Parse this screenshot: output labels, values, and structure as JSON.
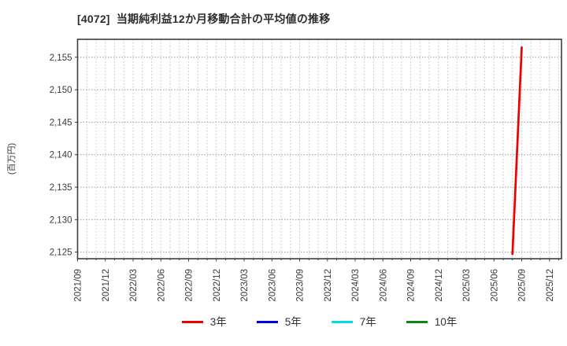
{
  "chart": {
    "title": "[4072]  当期純利益12か月移動合計の平均値の推移",
    "y_unit": "(百万円)"
  },
  "chart_data": {
    "type": "line",
    "title": "[4072] 当期純利益12か月移動合計の平均値の推移",
    "xlabel": "",
    "ylabel": "(百万円)",
    "ylim": [
      2123.5,
      2158
    ],
    "y_ticks": [
      2125,
      2130,
      2135,
      2140,
      2145,
      2150,
      2155
    ],
    "y_tick_labels": [
      "2,125",
      "2,130",
      "2,135",
      "2,140",
      "2,145",
      "2,150",
      "2,155"
    ],
    "x_tick_labels": [
      "2021/09",
      "2021/12",
      "2022/03",
      "2022/06",
      "2022/09",
      "2022/12",
      "2023/03",
      "2023/06",
      "2023/09",
      "2023/12",
      "2024/03",
      "2024/06",
      "2024/09",
      "2024/12",
      "2025/03",
      "2025/06",
      "2025/09",
      "2025/12"
    ],
    "x_start": "2021/09",
    "x_minor_grid": "monthly",
    "grid": "dotted",
    "legend_position": "bottom-center",
    "series": [
      {
        "name": "3年",
        "color": "#ee0000",
        "points": [
          [
            "2025/08",
            2124.7
          ],
          [
            "2025/09",
            2156.5
          ]
        ]
      },
      {
        "name": "5年",
        "color": "#0000e0",
        "points": []
      },
      {
        "name": "7年",
        "color": "#00dde8",
        "points": []
      },
      {
        "name": "10年",
        "color": "#0a8a0a",
        "points": []
      }
    ]
  }
}
